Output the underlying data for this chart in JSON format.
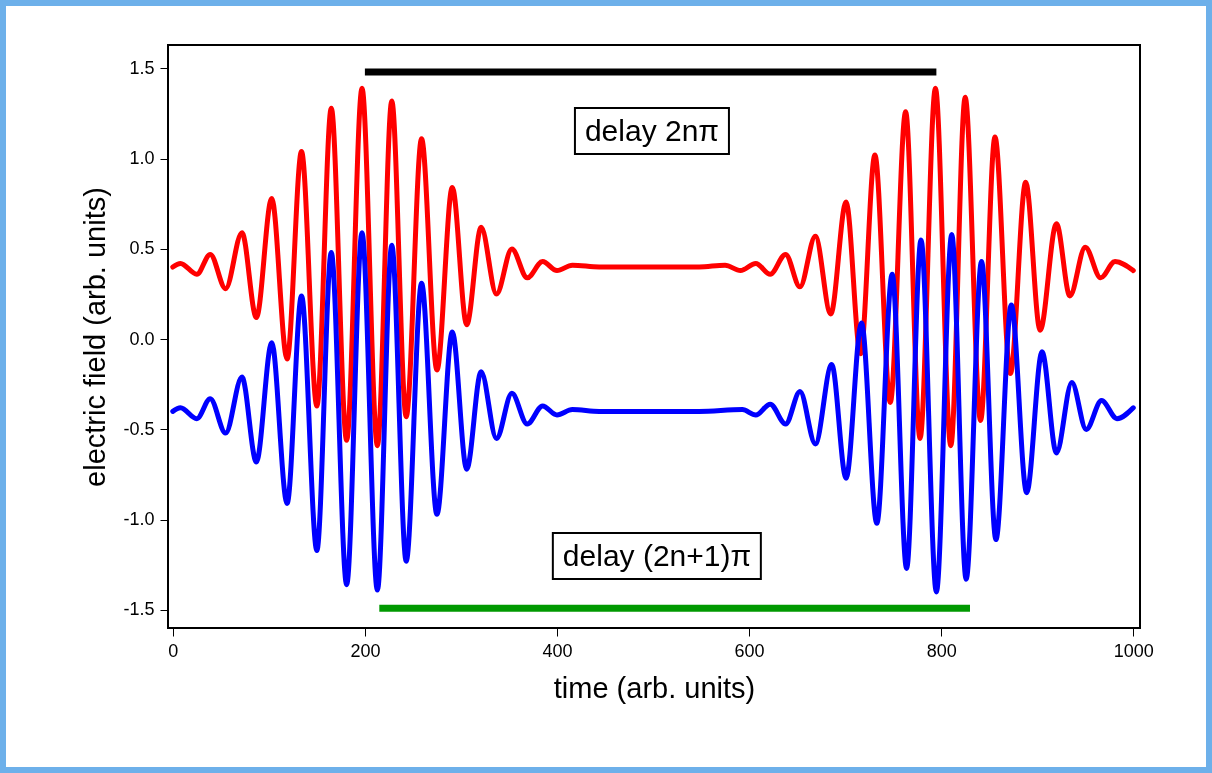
{
  "chart_data": {
    "type": "line",
    "xlabel": "time (arb. units)",
    "ylabel": "electric field (arb. units)",
    "xlim": [
      -5,
      1007
    ],
    "ylim": [
      -1.6,
      1.63
    ],
    "xticks": [
      0,
      200,
      400,
      600,
      800,
      {
        "value": 1000,
        "label": "1000"
      }
    ],
    "yticks": [
      -1.5,
      {
        "value": -1,
        "label": "-1.0"
      },
      -0.5,
      {
        "value": 0,
        "label": "0.0"
      },
      0.5,
      {
        "value": 1,
        "label": "1.0"
      },
      1.5
    ],
    "grid": false,
    "marker": "none",
    "line_style": "solid",
    "series": [
      {
        "color": "#ff0000",
        "x": [
          0,
          8,
          25,
          39,
          55,
          72,
          87,
          103,
          119,
          134,
          150,
          165,
          181,
          197,
          213,
          228,
          243,
          259,
          275,
          291,
          306,
          321,
          337,
          353,
          369,
          385,
          400,
          416,
          444,
          496,
          548,
          575,
          591,
          607,
          622,
          638,
          653,
          669,
          685,
          701,
          716,
          731,
          747,
          763,
          778,
          794,
          810,
          825,
          841,
          856,
          872,
          888,
          903,
          920,
          934,
          950,
          966,
          981,
          1000
        ],
        "values": [
          0.4,
          0.42,
          0.36,
          0.47,
          0.28,
          0.59,
          0.12,
          0.78,
          -0.11,
          1.04,
          -0.37,
          1.28,
          -0.56,
          1.39,
          -0.59,
          1.32,
          -0.43,
          1.11,
          -0.17,
          0.84,
          0.08,
          0.62,
          0.25,
          0.5,
          0.34,
          0.43,
          0.38,
          0.41,
          0.4,
          0.4,
          0.4,
          0.41,
          0.38,
          0.42,
          0.36,
          0.47,
          0.29,
          0.57,
          0.14,
          0.76,
          -0.08,
          1.02,
          -0.35,
          1.26,
          -0.55,
          1.39,
          -0.59,
          1.34,
          -0.45,
          1.12,
          -0.19,
          0.87,
          0.05,
          0.64,
          0.24,
          0.51,
          0.34,
          0.43,
          0.38
        ]
      },
      {
        "color": "#0000ff",
        "x": [
          0,
          8,
          25,
          39,
          55,
          72,
          87,
          103,
          119,
          134,
          150,
          165,
          181,
          197,
          213,
          228,
          243,
          259,
          275,
          291,
          306,
          321,
          337,
          353,
          369,
          385,
          400,
          416,
          444,
          496,
          548,
          593,
          607,
          622,
          638,
          653,
          669,
          686,
          701,
          717,
          733,
          749,
          764,
          779,
          795,
          811,
          826,
          842,
          857,
          873,
          889,
          905,
          920,
          936,
          951,
          967,
          983,
          1000
        ],
        "values": [
          -0.4,
          -0.38,
          -0.44,
          -0.33,
          -0.52,
          -0.21,
          -0.68,
          -0.02,
          -0.91,
          0.24,
          -1.17,
          0.48,
          -1.36,
          0.59,
          -1.39,
          0.52,
          -1.23,
          0.31,
          -0.97,
          0.04,
          -0.72,
          -0.18,
          -0.55,
          -0.3,
          -0.47,
          -0.37,
          -0.42,
          -0.39,
          -0.4,
          -0.4,
          -0.4,
          -0.39,
          -0.42,
          -0.36,
          -0.47,
          -0.29,
          -0.58,
          -0.14,
          -0.77,
          0.09,
          -1.02,
          0.36,
          -1.27,
          0.55,
          -1.4,
          0.58,
          -1.33,
          0.43,
          -1.11,
          0.19,
          -0.85,
          -0.07,
          -0.63,
          -0.24,
          -0.5,
          -0.34,
          -0.44,
          -0.38
        ]
      },
      {
        "type": "line",
        "color": "#000000",
        "x": [
          200,
          795
        ],
        "values": [
          1.48,
          1.48
        ]
      },
      {
        "type": "line",
        "color": "#009900",
        "x": [
          215,
          830
        ],
        "values": [
          -1.49,
          -1.49
        ]
      }
    ],
    "annotations": [
      "delay 2nπ",
      "delay (2n+1)π"
    ]
  }
}
